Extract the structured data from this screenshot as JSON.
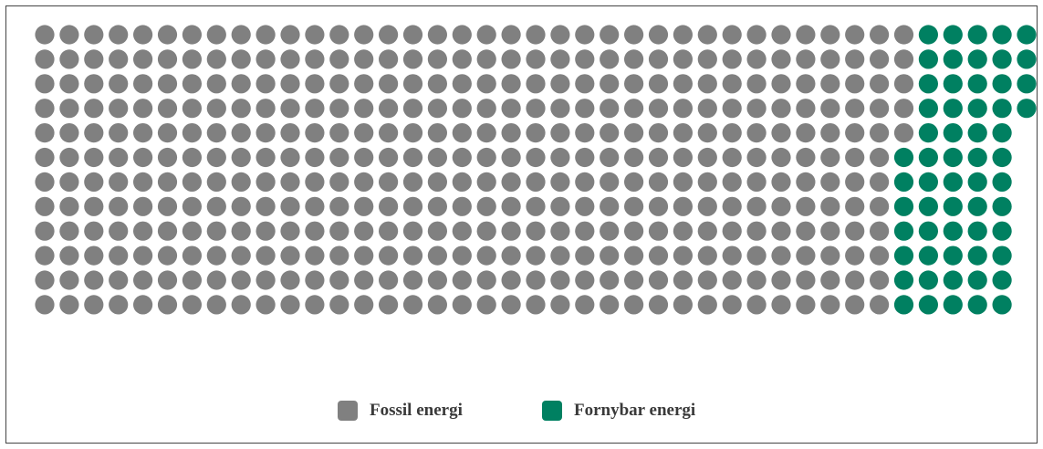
{
  "chart_data": {
    "type": "waffle",
    "title": "",
    "colors": {
      "Fossil energi": "#808080",
      "Fornybar energi": "#008061"
    },
    "rows": [
      {
        "fossil": 36,
        "renewable": 5
      },
      {
        "fossil": 36,
        "renewable": 5
      },
      {
        "fossil": 36,
        "renewable": 5
      },
      {
        "fossil": 36,
        "renewable": 5
      },
      {
        "fossil": 36,
        "renewable": 4
      },
      {
        "fossil": 35,
        "renewable": 5
      },
      {
        "fossil": 35,
        "renewable": 5
      },
      {
        "fossil": 35,
        "renewable": 5
      },
      {
        "fossil": 35,
        "renewable": 5
      },
      {
        "fossil": 35,
        "renewable": 5
      },
      {
        "fossil": 35,
        "renewable": 5
      },
      {
        "fossil": 35,
        "renewable": 5
      }
    ],
    "legend": [
      {
        "label": "Fossil energi",
        "color": "#808080"
      },
      {
        "label": "Fornybar energi",
        "color": "#008061"
      }
    ],
    "legend_position": "bottom-center"
  }
}
